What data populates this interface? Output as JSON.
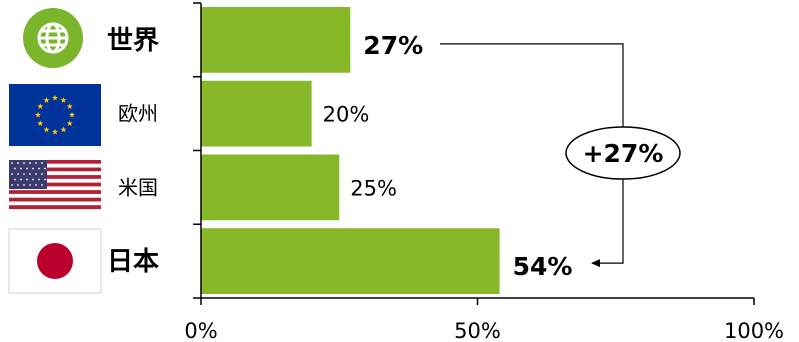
{
  "chart_data": {
    "type": "bar",
    "orientation": "horizontal",
    "categories": [
      "世界",
      "欧州",
      "米国",
      "日本"
    ],
    "values": [
      27,
      20,
      25,
      54
    ],
    "value_labels": [
      "27%",
      "20%",
      "25%",
      "54%"
    ],
    "emphasized": [
      true,
      false,
      false,
      true
    ],
    "flag_icons": [
      "globe-icon",
      "eu-flag-icon",
      "us-flag-icon",
      "japan-flag-icon"
    ],
    "xlim": [
      0,
      100
    ],
    "xticks": [
      0,
      50,
      100
    ],
    "xtick_labels": [
      "0%",
      "50%",
      "100%"
    ],
    "grid": false,
    "legend": "none",
    "annotation": {
      "label": "+27%",
      "from_category": "世界",
      "to_category": "日本"
    },
    "colors": {
      "bar": "#86b82a",
      "axis": "#000000",
      "globe": "#7ab52c",
      "eu_blue": "#003399",
      "eu_stars": "#ffcc00",
      "us_red": "#b22234",
      "us_blue": "#3c3b6e",
      "japan_red": "#bc002d"
    }
  }
}
